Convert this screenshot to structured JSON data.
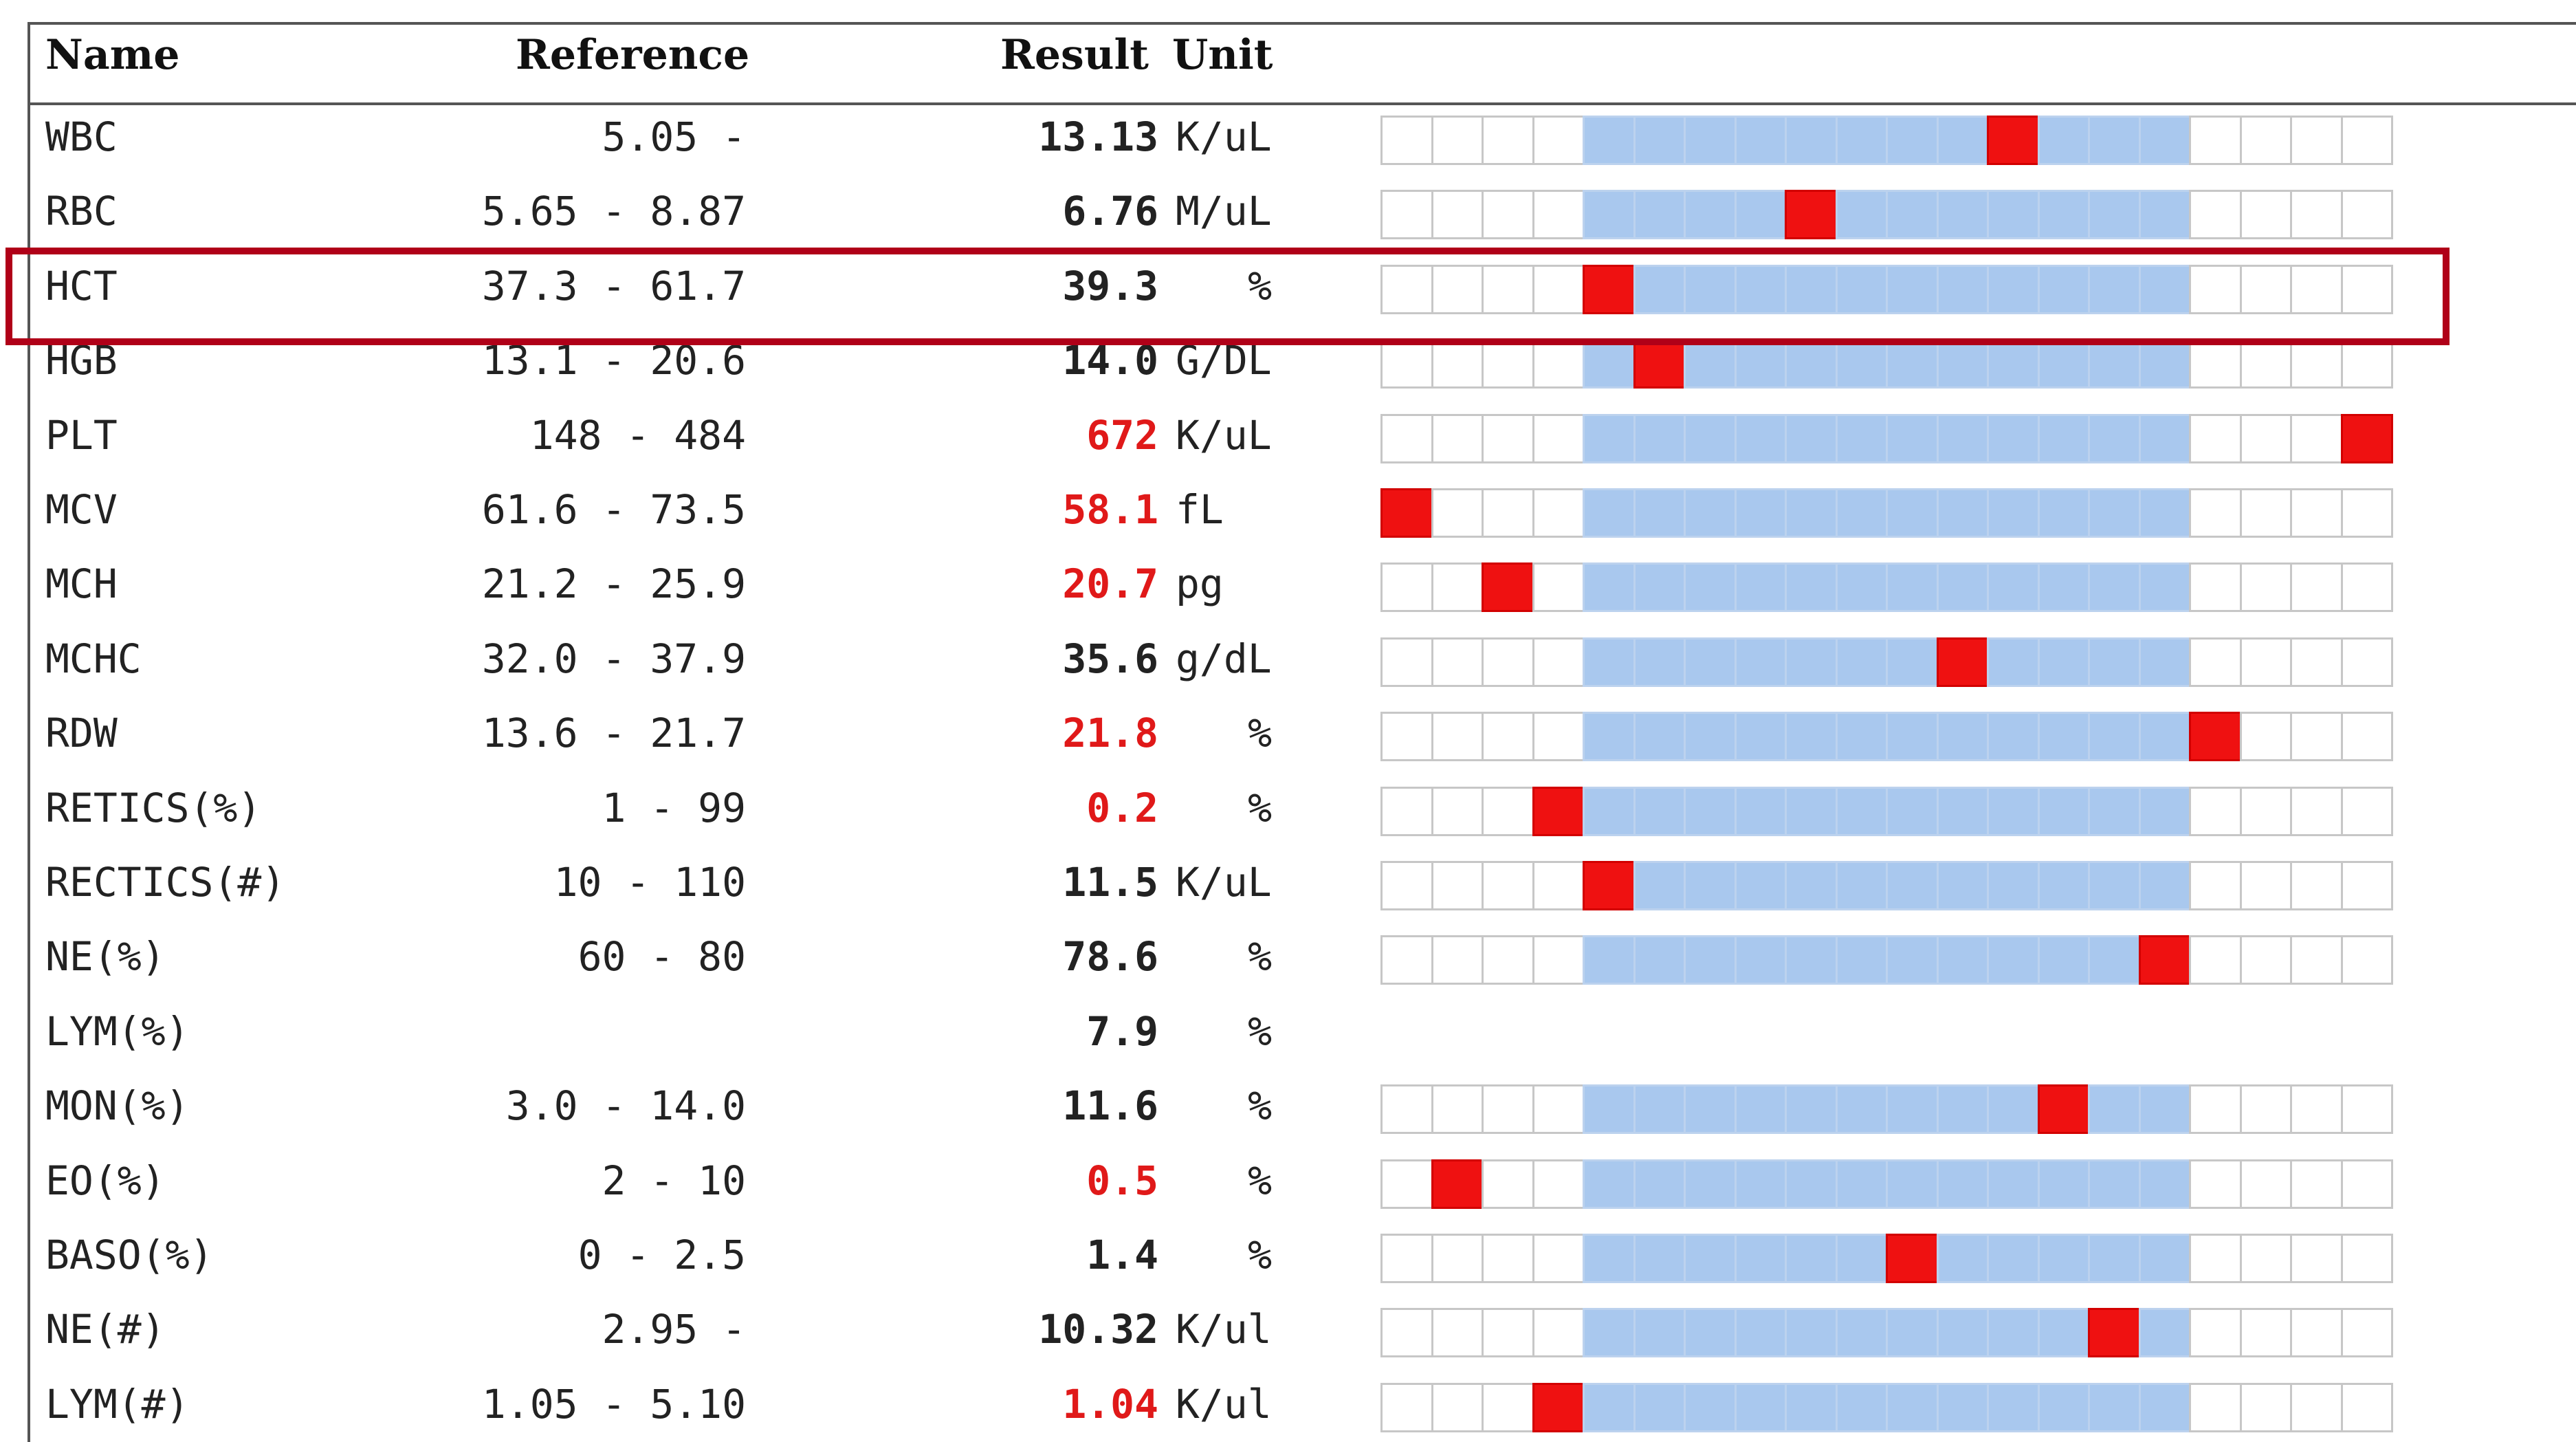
{
  "header": {
    "name": "Name",
    "reference": "Reference",
    "result": "Result",
    "unit": "Unit"
  },
  "colors": {
    "reference_band": "#a9c8ee",
    "marker": "#ef1111",
    "abnormal_text": "#e01919",
    "highlight_box": "#b00018",
    "empty_segment": "#ffffff"
  },
  "gauge": {
    "segments": 20,
    "reference_band_segments": [
      5,
      16
    ]
  },
  "highlight": {
    "row": "HCT"
  },
  "rows": [
    {
      "name": "WBC",
      "reference": "5.05 -",
      "result": "13.13",
      "unit": "K/uL",
      "abnormal": false,
      "marker_segment": 13
    },
    {
      "name": "RBC",
      "reference": "5.65 - 8.87",
      "result": "6.76",
      "unit": "M/uL",
      "abnormal": false,
      "marker_segment": 9
    },
    {
      "name": "HCT",
      "reference": "37.3 - 61.7",
      "result": "39.3",
      "unit": "%",
      "abnormal": false,
      "marker_segment": 5
    },
    {
      "name": "HGB",
      "reference": "13.1 - 20.6",
      "result": "14.0",
      "unit": "G/DL",
      "abnormal": false,
      "marker_segment": 6
    },
    {
      "name": "PLT",
      "reference": "148 - 484",
      "result": "672",
      "unit": "K/uL",
      "abnormal": true,
      "marker_segment": 20
    },
    {
      "name": "MCV",
      "reference": "61.6 - 73.5",
      "result": "58.1",
      "unit": "fL",
      "abnormal": true,
      "marker_segment": 1
    },
    {
      "name": "MCH",
      "reference": "21.2 - 25.9",
      "result": "20.7",
      "unit": "pg",
      "abnormal": true,
      "marker_segment": 3
    },
    {
      "name": "MCHC",
      "reference": "32.0 - 37.9",
      "result": "35.6",
      "unit": "g/dL",
      "abnormal": false,
      "marker_segment": 12
    },
    {
      "name": "RDW",
      "reference": "13.6 - 21.7",
      "result": "21.8",
      "unit": "%",
      "abnormal": true,
      "marker_segment": 17
    },
    {
      "name": "RETICS(%)",
      "reference": "1 - 99",
      "result": "0.2",
      "unit": "%",
      "abnormal": true,
      "marker_segment": 4
    },
    {
      "name": "RECTICS(#)",
      "reference": "10 - 110",
      "result": "11.5",
      "unit": "K/uL",
      "abnormal": false,
      "marker_segment": 5
    },
    {
      "name": "NE(%)",
      "reference": "60 - 80",
      "result": "78.6",
      "unit": "%",
      "abnormal": false,
      "marker_segment": 16
    },
    {
      "name": "LYM(%)",
      "reference": "",
      "result": "7.9",
      "unit": "%",
      "abnormal": false,
      "marker_segment": null
    },
    {
      "name": "MON(%)",
      "reference": "3.0 - 14.0",
      "result": "11.6",
      "unit": "%",
      "abnormal": false,
      "marker_segment": 14
    },
    {
      "name": "EO(%)",
      "reference": "2 - 10",
      "result": "0.5",
      "unit": "%",
      "abnormal": true,
      "marker_segment": 2
    },
    {
      "name": "BASO(%)",
      "reference": "0 - 2.5",
      "result": "1.4",
      "unit": "%",
      "abnormal": false,
      "marker_segment": 11
    },
    {
      "name": "NE(#)",
      "reference": "2.95 -",
      "result": "10.32",
      "unit": "K/ul",
      "abnormal": false,
      "marker_segment": 15
    },
    {
      "name": "LYM(#)",
      "reference": "1.05 - 5.10",
      "result": "1.04",
      "unit": "K/ul",
      "abnormal": true,
      "marker_segment": 4
    }
  ]
}
